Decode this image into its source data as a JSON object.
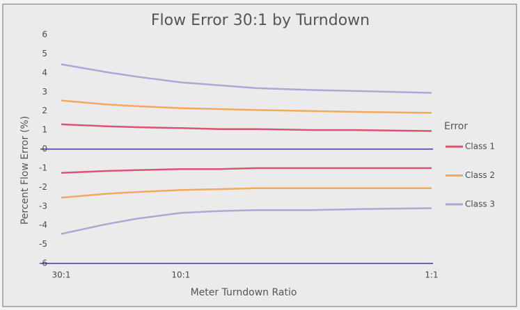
{
  "chart_data": {
    "type": "line",
    "title": "Flow Error 30:1 by Turndown",
    "x_label": "Meter Turndown Ratio",
    "y_label": "Percent Flow Error (%)",
    "legend_title": "Error",
    "legend": "right",
    "log_x": true,
    "x": [
      30,
      20,
      15,
      10,
      7,
      5,
      3,
      2,
      1
    ],
    "xlim": [
      30,
      1
    ],
    "xticks": [
      {
        "value": 30,
        "label": "30:1"
      },
      {
        "value": 10,
        "label": "10:1"
      },
      {
        "value": 1,
        "label": "1:1"
      }
    ],
    "ylim": [
      -6,
      6
    ],
    "yticks": [
      -6,
      -5,
      -4,
      -3,
      -2,
      -1,
      0,
      1,
      2,
      3,
      4,
      5,
      6
    ],
    "series": [
      {
        "name": "Class 1",
        "color": "#d9546e",
        "values": [
          1.3,
          1.2,
          1.15,
          1.1,
          1.05,
          1.05,
          1.0,
          1.0,
          0.95
        ],
        "lower_values": [
          -1.25,
          -1.15,
          -1.1,
          -1.05,
          -1.05,
          -1.0,
          -1.0,
          -1.0,
          -1.0
        ]
      },
      {
        "name": "Class 2",
        "color": "#f5a85a",
        "values": [
          2.55,
          2.35,
          2.25,
          2.15,
          2.1,
          2.05,
          2.0,
          1.95,
          1.9
        ],
        "lower_values": [
          -2.55,
          -2.35,
          -2.25,
          -2.15,
          -2.1,
          -2.05,
          -2.05,
          -2.05,
          -2.05
        ]
      },
      {
        "name": "Class 3",
        "color": "#a9a9d6",
        "values": [
          4.45,
          4.05,
          3.8,
          3.5,
          3.35,
          3.2,
          3.1,
          3.05,
          2.95
        ],
        "lower_values": [
          -4.45,
          -3.95,
          -3.65,
          -3.35,
          -3.25,
          -3.2,
          -3.2,
          -3.15,
          -3.1
        ]
      }
    ]
  }
}
